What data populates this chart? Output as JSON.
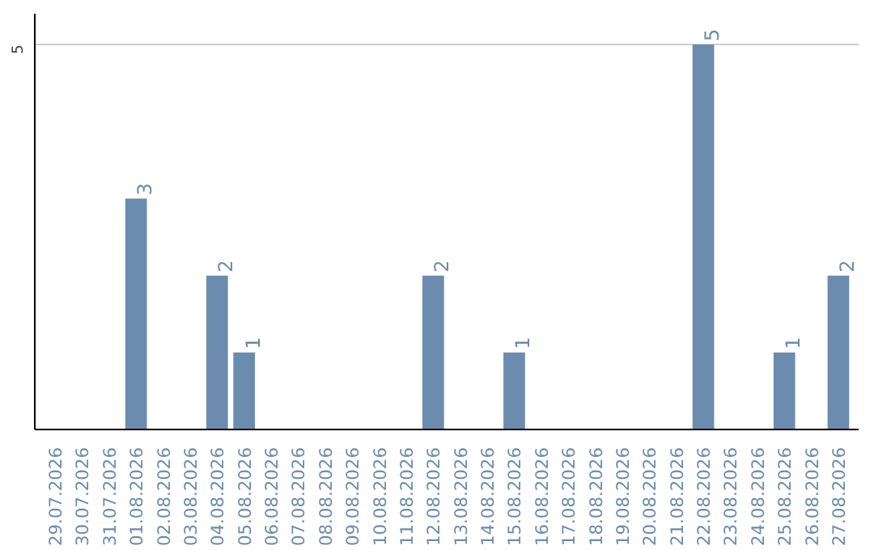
{
  "chart_data": {
    "type": "bar",
    "categories": [
      "29.07.2026",
      "30.07.2026",
      "31.07.2026",
      "01.08.2026",
      "02.08.2026",
      "03.08.2026",
      "04.08.2026",
      "05.08.2026",
      "06.08.2026",
      "07.08.2026",
      "08.08.2026",
      "09.08.2026",
      "10.08.2026",
      "11.08.2026",
      "12.08.2026",
      "13.08.2026",
      "14.08.2026",
      "15.08.2026",
      "16.08.2026",
      "17.08.2026",
      "18.08.2026",
      "19.08.2026",
      "20.08.2026",
      "21.08.2026",
      "22.08.2026",
      "23.08.2026",
      "24.08.2026",
      "25.08.2026",
      "26.08.2026",
      "27.08.2026"
    ],
    "values": [
      0,
      0,
      0,
      3,
      0,
      0,
      2,
      1,
      0,
      0,
      0,
      0,
      0,
      0,
      2,
      0,
      0,
      1,
      0,
      0,
      0,
      0,
      0,
      0,
      5,
      0,
      0,
      1,
      0,
      2
    ],
    "value_labels": [
      null,
      null,
      null,
      "3",
      null,
      null,
      "2",
      "1",
      null,
      null,
      null,
      null,
      null,
      null,
      "2",
      null,
      null,
      "1",
      null,
      null,
      null,
      null,
      null,
      null,
      "5",
      null,
      null,
      "1",
      null,
      "2"
    ],
    "color": "#6b8cae",
    "ylim": [
      0,
      5.4
    ],
    "yticks": [
      5
    ],
    "grid": "y"
  }
}
